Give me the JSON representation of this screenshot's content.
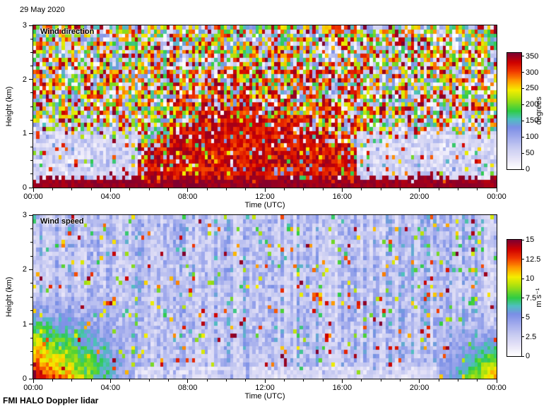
{
  "header": {
    "date": "29 May 2020"
  },
  "footer": {
    "instrument": "FMI HALO Doppler lidar"
  },
  "seed": 20200529,
  "grid": {
    "ncols": 146,
    "nrows": 40
  },
  "colormap": {
    "stops": [
      [
        0.0,
        "#ffffff"
      ],
      [
        0.08,
        "#e9e6f8"
      ],
      [
        0.18,
        "#c9ccf2"
      ],
      [
        0.28,
        "#9fa9ec"
      ],
      [
        0.36,
        "#7b8fe6"
      ],
      [
        0.43,
        "#4fc0c0"
      ],
      [
        0.5,
        "#2ecc45"
      ],
      [
        0.6,
        "#a8e010"
      ],
      [
        0.68,
        "#f5ee00"
      ],
      [
        0.76,
        "#ff9b00"
      ],
      [
        0.84,
        "#f23b00"
      ],
      [
        0.92,
        "#cf0000"
      ],
      [
        1.0,
        "#7d0030"
      ]
    ]
  },
  "chart_data": [
    {
      "type": "heatmap",
      "title": "Wind direction",
      "xlabel": "Time (UTC)",
      "ylabel": "Height (km)",
      "x_tick_labels": [
        "00:00",
        "04:00",
        "08:00",
        "12:00",
        "16:00",
        "20:00",
        "00:00"
      ],
      "x_tick_hours": [
        0,
        4,
        8,
        12,
        16,
        20,
        24
      ],
      "xlim_hours": [
        0,
        24
      ],
      "y_ticks": [
        0,
        1,
        2,
        3
      ],
      "ylim": [
        0,
        3
      ],
      "colorbar": {
        "label": "degrees",
        "ticks": [
          0,
          50,
          100,
          150,
          200,
          250,
          300,
          350
        ],
        "range": [
          0,
          360
        ]
      },
      "description": "Time-height pixel map of wind direction. Free troposphere is uncorrelated multicolour speckle; a near-surface layer of ~350 deg (dark red) persists all day; a coherent 295-355 deg (red) plume fills 0-1.4 km between ~05:30 and ~17:00; light lavender 15-90 deg air occupies the lowest ~1 km overnight at both ends of the day.",
      "features": {
        "surface_layer": {
          "h_max": 0.15,
          "value": [
            340,
            360
          ]
        },
        "daytime_plume": {
          "t": [
            5.5,
            16.8
          ],
          "h_max": 1.4,
          "value": [
            295,
            355
          ],
          "coherence": 0.82
        },
        "night_low_level": {
          "t_morning_end": 5.5,
          "t_evening_start": 16.8,
          "h_max": 1.05,
          "value": [
            15,
            90
          ],
          "coherence": 0.85
        },
        "free_troposphere": {
          "value": [
            0,
            360
          ],
          "midday_red_bias": {
            "t": [
              7,
              17
            ],
            "h_max": 2.2,
            "fraction": 0.3,
            "value": [
              280,
              360
            ]
          }
        }
      }
    },
    {
      "type": "heatmap",
      "title": "Wind speed",
      "xlabel": "Time (UTC)",
      "ylabel": "Height (km)",
      "x_tick_labels": [
        "00:00",
        "04:00",
        "08:00",
        "12:00",
        "16:00",
        "20:00",
        "00:00"
      ],
      "x_tick_hours": [
        0,
        4,
        8,
        12,
        16,
        20,
        24
      ],
      "xlim_hours": [
        0,
        24
      ],
      "y_ticks": [
        0,
        1,
        2,
        3
      ],
      "ylim": [
        0,
        3
      ],
      "colorbar": {
        "label": "m s⁻¹",
        "ticks": [
          0,
          2.5,
          5,
          7.5,
          10,
          12.5,
          15
        ],
        "range": [
          0,
          15
        ]
      },
      "description": "Time-height pixel map of wind speed. Background 2-5 m/s periwinkle speckle with sparse bright pixels up to 15 m/s; a low-level jet of 8-15 m/s (yellow/orange/red wedge) below ~1.4 km from 00:00 to ~05:30; a shallow calm (<3 m/s, whitish) layer near the surface through midday; speeds increase again (green/yellow) below ~1 km after ~21:00.",
      "features": {
        "background": {
          "value": [
            1.8,
            5.2
          ],
          "column_variation": [
            0.6,
            1.3
          ]
        },
        "speckle": {
          "fraction": 0.07,
          "value": [
            6,
            15
          ]
        },
        "morning_jet": {
          "t_end": 5.5,
          "h_max": 1.5,
          "peak": 15,
          "base": 2.5
        },
        "evening_increase": {
          "t_start": 20.8,
          "h_max": 1.0,
          "value": [
            3,
            12
          ]
        },
        "shallow_calm": {
          "t": [
            5.2,
            20.8
          ],
          "h_max": 0.22,
          "value": [
            0.8,
            3.0
          ],
          "fraction": 0.8
        }
      }
    }
  ]
}
